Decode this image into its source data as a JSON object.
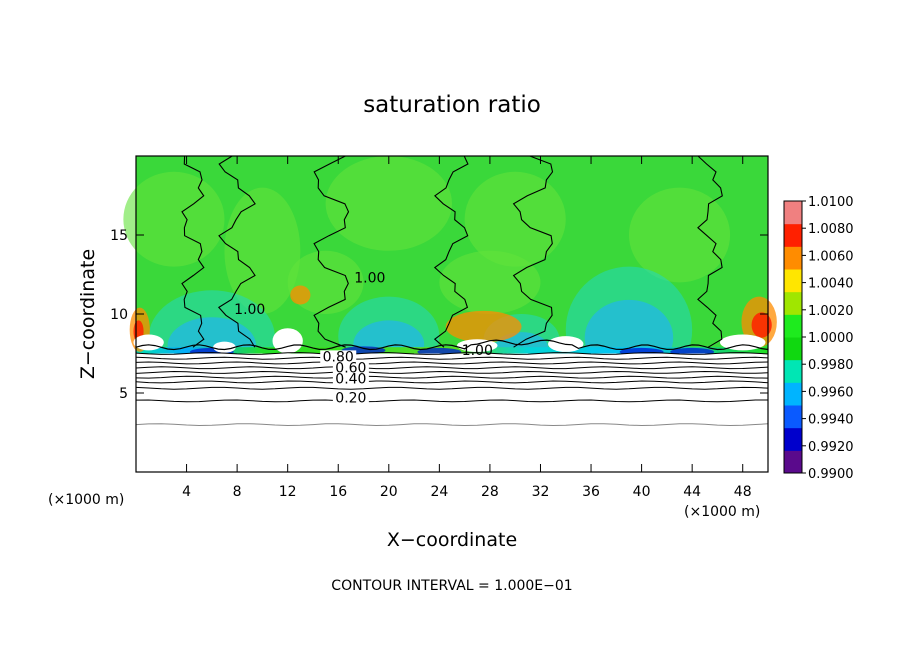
{
  "chart_data": {
    "type": "heatmap",
    "title": "saturation ratio",
    "xlabel": "X−coordinate",
    "ylabel": "Z−coordinate",
    "x_unit_label_left": "(×1000 m)",
    "x_unit_label_right": "(×1000 m)",
    "xlim": [
      0,
      50
    ],
    "ylim": [
      0,
      20
    ],
    "x_ticks": [
      4,
      8,
      12,
      16,
      20,
      24,
      28,
      32,
      36,
      40,
      44,
      48
    ],
    "y_ticks": [
      5,
      10,
      15
    ],
    "footer": "CONTOUR INTERVAL = 1.000E−01",
    "contour_labels": [
      {
        "text": "1.00",
        "x": 18.5,
        "y": 12.0
      },
      {
        "text": "1.00",
        "x": 9.0,
        "y": 10.0
      },
      {
        "text": "1.00",
        "x": 27.0,
        "y": 7.4
      },
      {
        "text": "0.80",
        "x": 16.0,
        "y": 7.0
      },
      {
        "text": "0.60",
        "x": 17.0,
        "y": 6.3
      },
      {
        "text": "0.40",
        "x": 17.0,
        "y": 5.6
      },
      {
        "text": "0.20",
        "x": 17.0,
        "y": 4.4
      }
    ],
    "colorbar": {
      "min": 0.99,
      "max": 1.01,
      "ticks": [
        "1.0100",
        "1.0080",
        "1.0060",
        "1.0040",
        "1.0020",
        "1.0000",
        "0.9980",
        "0.9960",
        "0.9940",
        "0.9920",
        "0.9900"
      ],
      "colors": [
        "#5a0a8c",
        "#0000cc",
        "#0a5aff",
        "#00b4ff",
        "#00e6b4",
        "#10d810",
        "#1eeb1e",
        "#a0e600",
        "#ffe600",
        "#ff8c00",
        "#ff2000",
        "#f08080"
      ]
    }
  }
}
